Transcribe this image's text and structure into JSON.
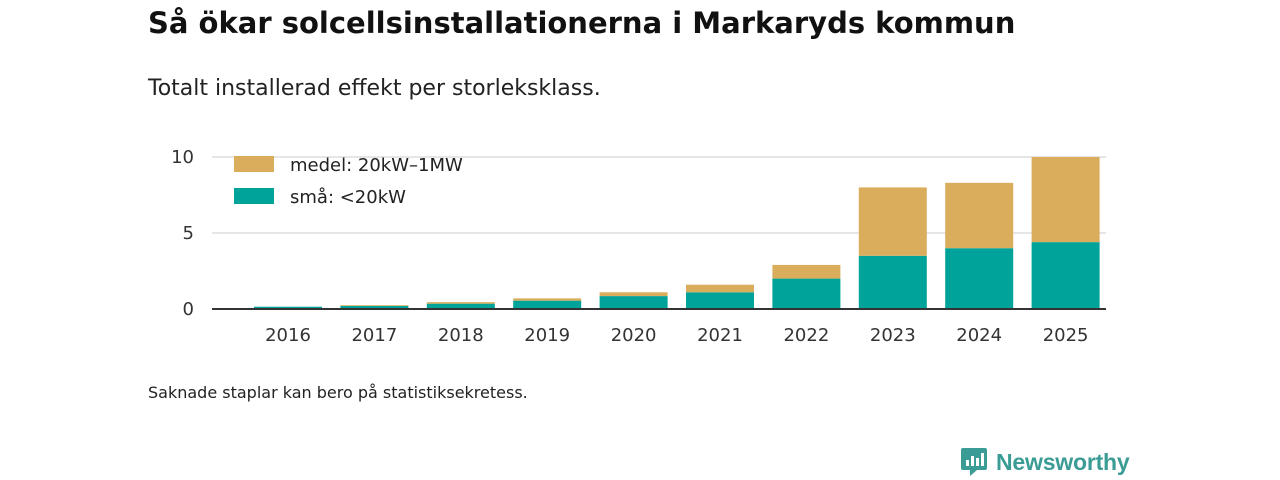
{
  "header": {
    "title": "Så ökar solcellsinstallationerna i Markaryds kommun",
    "subtitle": "Totalt installerad effekt per storleksklass."
  },
  "footer": {
    "note": "Saknade staplar kan bero på statistiksekretess.",
    "brand": "Newsworthy"
  },
  "colors": {
    "small": "#00a39a",
    "medium": "#d9ad5b",
    "grid": "#dddddd",
    "axis": "#333333",
    "brand": "#3a9c94"
  },
  "chart_data": {
    "type": "bar",
    "stacked": true,
    "title": "Så ökar solcellsinstallationerna i Markaryds kommun",
    "subtitle": "Totalt installerad effekt per storleksklass.",
    "categories": [
      "2016",
      "2017",
      "2018",
      "2019",
      "2020",
      "2021",
      "2022",
      "2023",
      "2024",
      "2025"
    ],
    "series": [
      {
        "name": "små: <20kW",
        "color": "#00a39a",
        "values": [
          0.15,
          0.2,
          0.35,
          0.55,
          0.85,
          1.1,
          2.0,
          3.5,
          4.0,
          4.4
        ]
      },
      {
        "name": "medel: 20kW–1MW",
        "color": "#d9ad5b",
        "values": [
          0.0,
          0.05,
          0.1,
          0.15,
          0.25,
          0.5,
          0.9,
          4.5,
          4.3,
          5.6
        ]
      }
    ],
    "yticks": [
      0,
      5,
      10
    ],
    "ylim": [
      0,
      10.3
    ],
    "xlabel": "",
    "ylabel": "",
    "grid": true,
    "legend_position": "top-left"
  }
}
